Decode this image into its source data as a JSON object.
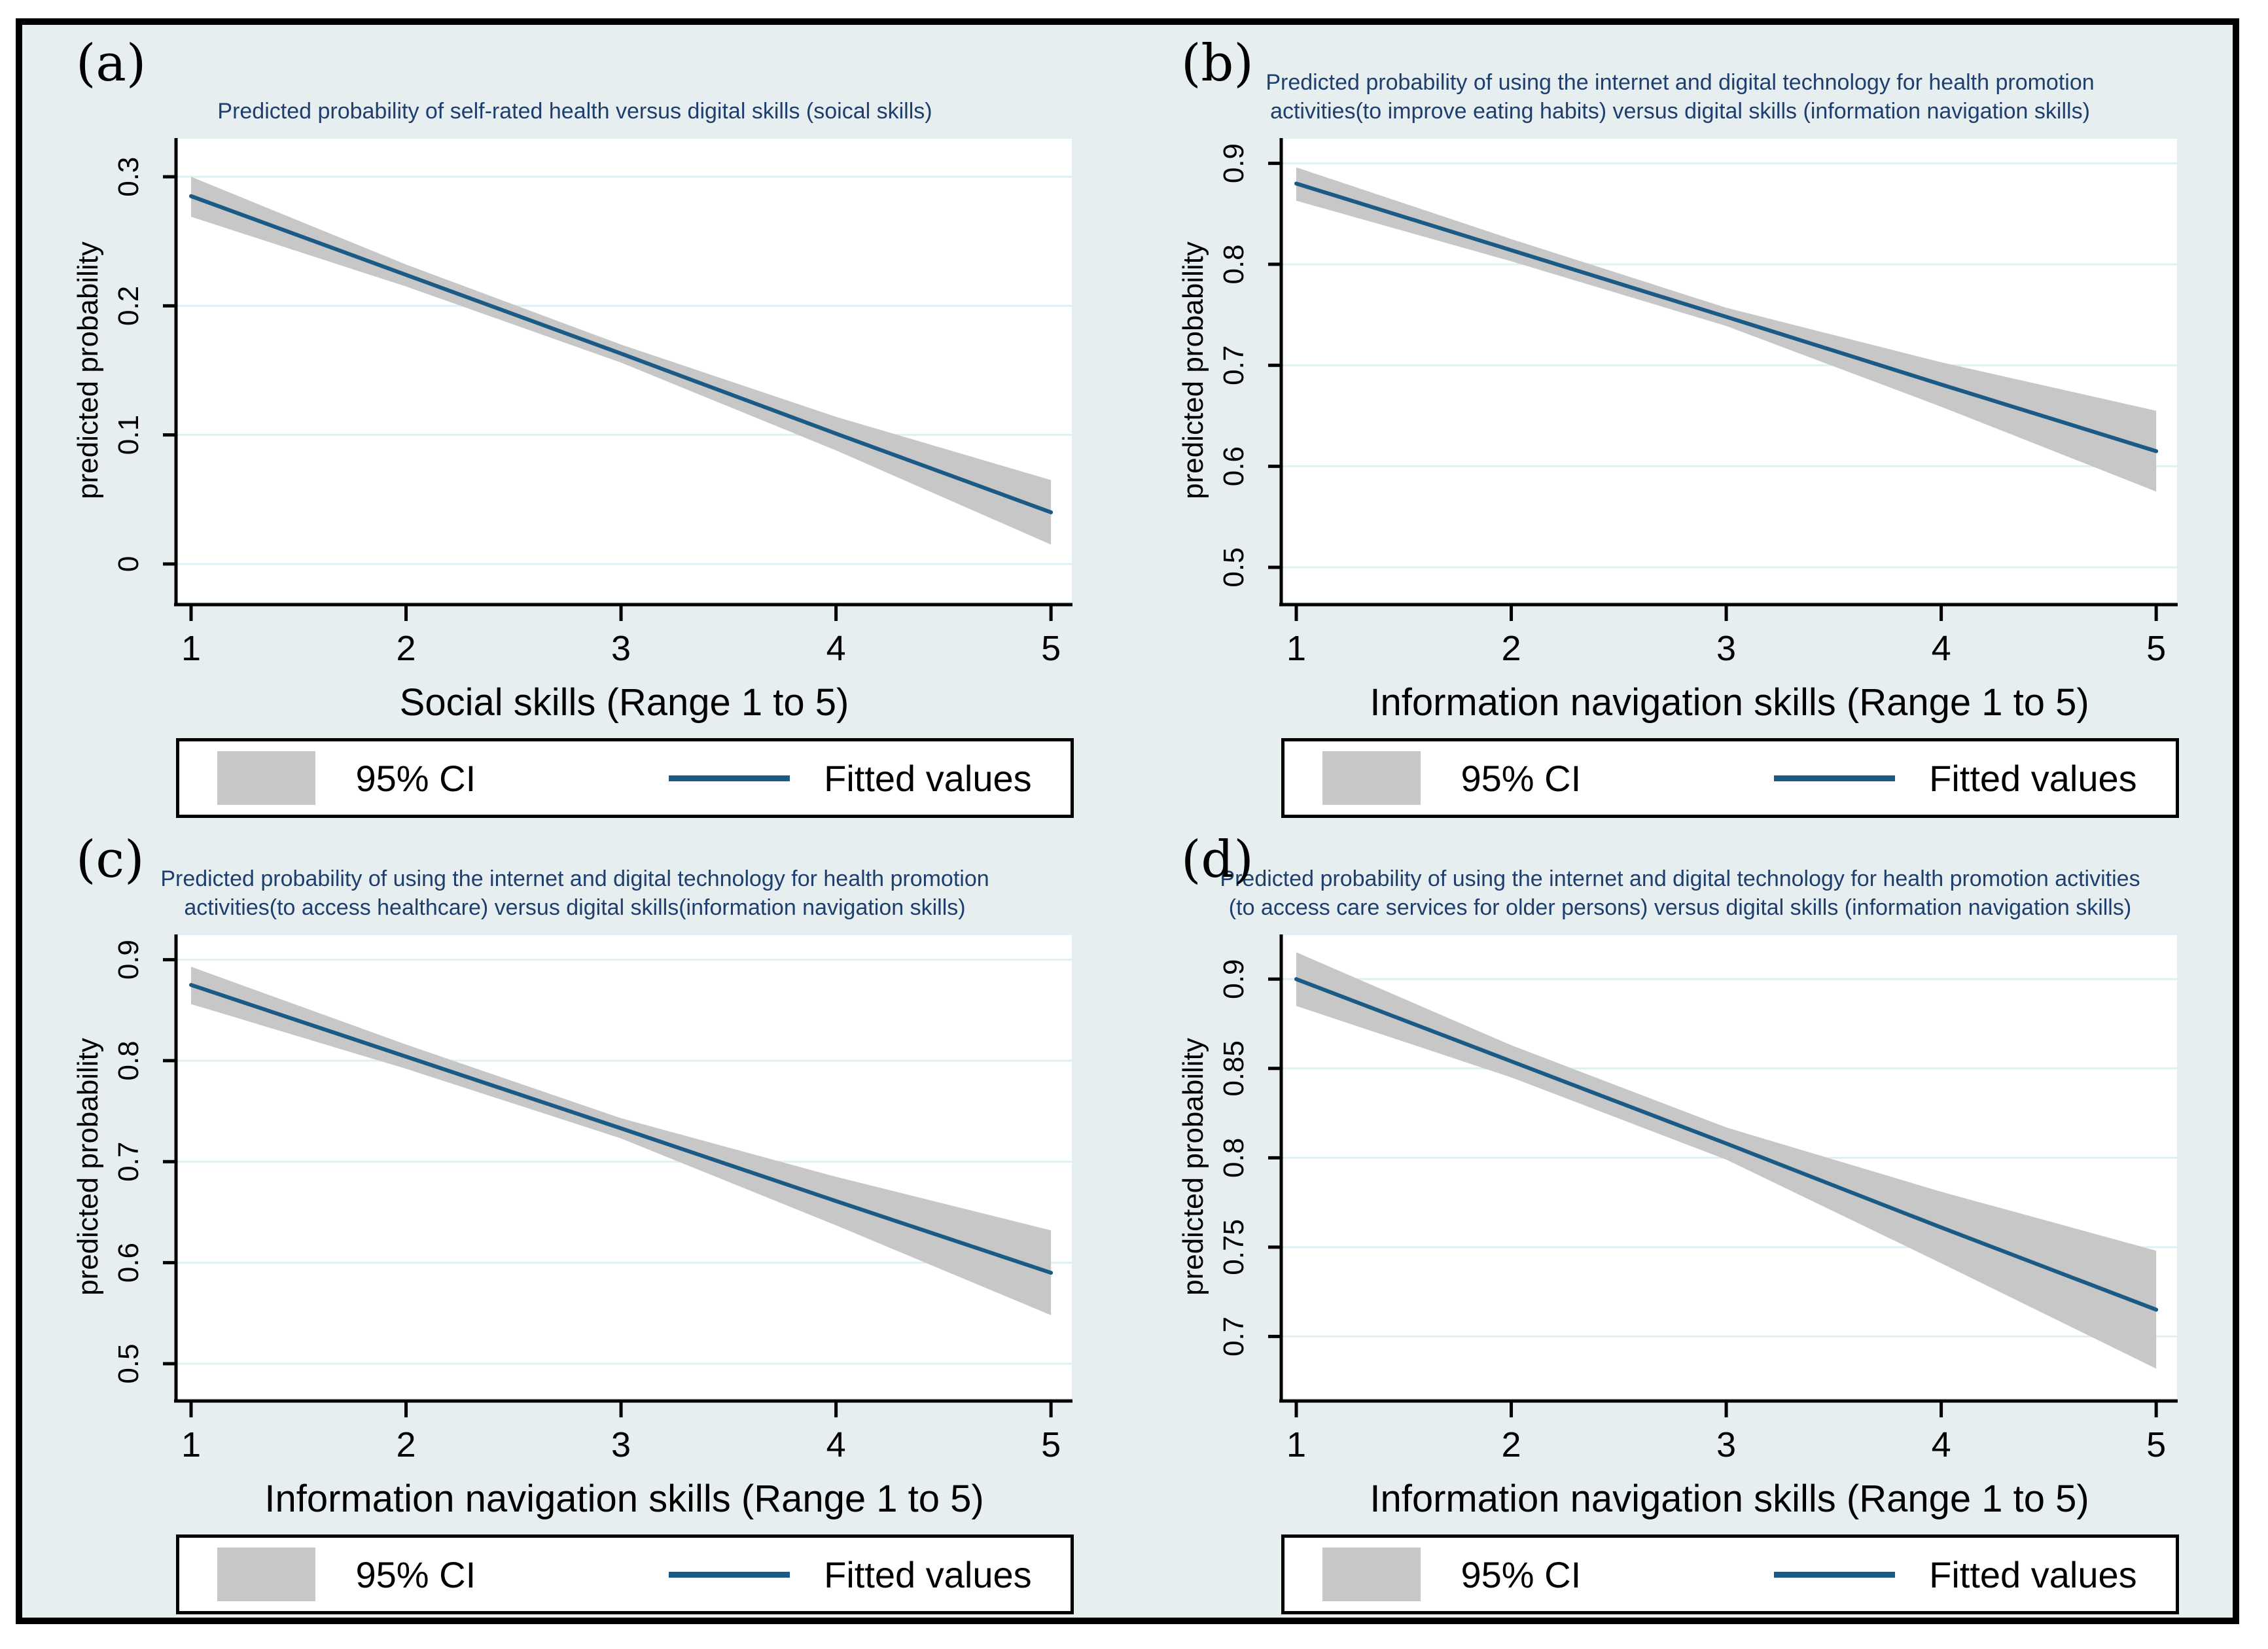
{
  "figure": {
    "background": "#e6eef0",
    "frame_border": "#000000",
    "colors": {
      "fit_line": "#1a5a84",
      "ci_band": "#c7c7c7",
      "gridline": "#dff0f4",
      "title": "#1e3f6d",
      "axis": "#000000",
      "plot_bg": "#ffffff"
    },
    "legend": {
      "ci_label": "95% CI",
      "line_label": "Fitted values"
    }
  },
  "panels": [
    {
      "label": "(a)",
      "title": "Predicted probability of self-rated health versus digital skills (soical skills)",
      "xlabel": "Social skills (Range 1 to 5)",
      "ylabel": "predicted probability"
    },
    {
      "label": "(b)",
      "title": "Predicted probability of using the internet and digital technology for health promotion\nactivities(to improve eating habits) versus digital skills (information navigation skills)",
      "xlabel": "Information navigation skills (Range 1 to 5)",
      "ylabel": "predicted probability"
    },
    {
      "label": "(c)",
      "title": "Predicted probability of using the internet and digital technology for health promotion\nactivities(to access healthcare) versus digital skills(information navigation skills)",
      "xlabel": "Information navigation skills (Range 1 to 5)",
      "ylabel": "predicted probability"
    },
    {
      "label": "(d)",
      "title": "Predicted probability of using the internet and digital technology for health promotion activities\n(to access care services for older persons) versus digital skills (information navigation skills)",
      "xlabel": "Information navigation skills (Range 1 to 5)",
      "ylabel": "predicted probability"
    }
  ],
  "chart_data": [
    {
      "type": "line",
      "panel": "a",
      "title": "Predicted probability of self-rated health versus digital skills (soical skills)",
      "xlabel": "Social skills (Range 1 to 5)",
      "ylabel": "predicted probability",
      "x": [
        1,
        2,
        3,
        4,
        5
      ],
      "x_ticks": [
        1,
        2,
        3,
        4,
        5
      ],
      "series": [
        {
          "name": "Fitted values",
          "values": [
            0.285,
            0.224,
            0.163,
            0.101,
            0.04
          ]
        }
      ],
      "ci_95": {
        "name": "95% CI",
        "low": [
          0.269,
          0.215,
          0.156,
          0.088,
          0.015
        ],
        "high": [
          0.3,
          0.232,
          0.17,
          0.114,
          0.065
        ]
      },
      "xlim": [
        0.93,
        5.1
      ],
      "ylim": [
        -0.03,
        0.33
      ],
      "y_ticks": [
        0,
        0.1,
        0.2,
        0.3
      ],
      "grid": true,
      "legend_position": "bottom"
    },
    {
      "type": "line",
      "panel": "b",
      "title": "Predicted probability of using the internet and digital technology for health promotion activities(to improve eating habits) versus digital skills (information navigation skills)",
      "xlabel": "Information navigation skills (Range 1 to 5)",
      "ylabel": "predicted probability",
      "x": [
        1,
        2,
        3,
        4,
        5
      ],
      "x_ticks": [
        1,
        2,
        3,
        4,
        5
      ],
      "series": [
        {
          "name": "Fitted values",
          "values": [
            0.88,
            0.814,
            0.748,
            0.681,
            0.615
          ]
        }
      ],
      "ci_95": {
        "name": "95% CI",
        "low": [
          0.863,
          0.803,
          0.739,
          0.659,
          0.575
        ],
        "high": [
          0.896,
          0.825,
          0.757,
          0.703,
          0.655
        ]
      },
      "xlim": [
        0.93,
        5.1
      ],
      "ylim": [
        0.465,
        0.925
      ],
      "y_ticks": [
        0.5,
        0.6,
        0.7,
        0.8,
        0.9
      ],
      "grid": true,
      "legend_position": "bottom"
    },
    {
      "type": "line",
      "panel": "c",
      "title": "Predicted probability of using the internet and digital technology for health promotion activities(to access healthcare) versus digital skills(information navigation skills)",
      "xlabel": "Information navigation skills (Range 1 to 5)",
      "ylabel": "predicted probability",
      "x": [
        1,
        2,
        3,
        4,
        5
      ],
      "x_ticks": [
        1,
        2,
        3,
        4,
        5
      ],
      "series": [
        {
          "name": "Fitted values",
          "values": [
            0.875,
            0.804,
            0.733,
            0.661,
            0.59
          ]
        }
      ],
      "ci_95": {
        "name": "95% CI",
        "low": [
          0.856,
          0.792,
          0.723,
          0.637,
          0.548
        ],
        "high": [
          0.893,
          0.816,
          0.743,
          0.685,
          0.632
        ]
      },
      "xlim": [
        0.93,
        5.1
      ],
      "ylim": [
        0.465,
        0.925
      ],
      "y_ticks": [
        0.5,
        0.6,
        0.7,
        0.8,
        0.9
      ],
      "grid": true,
      "legend_position": "bottom"
    },
    {
      "type": "line",
      "panel": "d",
      "title": "Predicted probability of using the internet and digital technology for health promotion activities (to access care services for older persons) versus digital skills (information navigation skills)",
      "xlabel": "Information navigation skills (Range 1 to 5)",
      "ylabel": "predicted probability",
      "x": [
        1,
        2,
        3,
        4,
        5
      ],
      "x_ticks": [
        1,
        2,
        3,
        4,
        5
      ],
      "series": [
        {
          "name": "Fitted values",
          "values": [
            0.9,
            0.854,
            0.808,
            0.761,
            0.715
          ]
        }
      ],
      "ci_95": {
        "name": "95% CI",
        "low": [
          0.885,
          0.845,
          0.799,
          0.741,
          0.682
        ],
        "high": [
          0.915,
          0.863,
          0.817,
          0.781,
          0.748
        ]
      },
      "xlim": [
        0.93,
        5.1
      ],
      "ylim": [
        0.665,
        0.925
      ],
      "y_ticks": [
        0.7,
        0.75,
        0.8,
        0.85,
        0.9
      ],
      "grid": true,
      "legend_position": "bottom"
    }
  ]
}
